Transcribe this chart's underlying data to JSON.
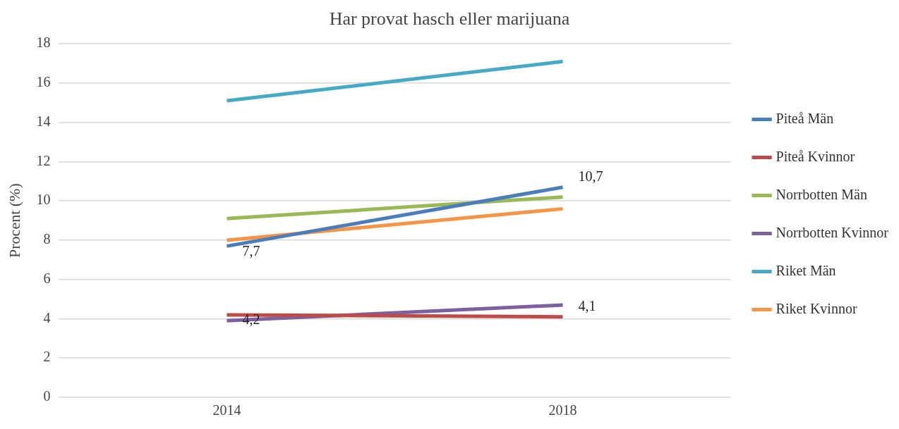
{
  "chart_data": {
    "type": "line",
    "title": "Har provat hasch eller marijuana",
    "ylabel": "Procent (%)",
    "categories": [
      "2014",
      "2018"
    ],
    "series": [
      {
        "name": "Piteå Män",
        "color": "#4a7ebb",
        "values": [
          7.7,
          10.7
        ],
        "value_labels": [
          "7,7",
          "10,7"
        ]
      },
      {
        "name": "Piteå Kvinnor",
        "color": "#be4b48",
        "values": [
          4.2,
          4.1
        ],
        "value_labels": [
          "4,2",
          "4,1"
        ]
      },
      {
        "name": "Norrbotten Män",
        "color": "#98b954",
        "values": [
          9.1,
          10.2
        ]
      },
      {
        "name": "Norrbotten Kvinnor",
        "color": "#7d60a0",
        "values": [
          3.9,
          4.7
        ]
      },
      {
        "name": "Riket Män",
        "color": "#46aac5",
        "values": [
          15.1,
          17.1
        ]
      },
      {
        "name": "Riket Kvinnor",
        "color": "#f69546",
        "values": [
          8.0,
          9.6
        ]
      }
    ],
    "ylim": [
      0,
      18
    ],
    "yticks": [
      0,
      2,
      4,
      6,
      8,
      10,
      12,
      14,
      16,
      18
    ],
    "grid": "y",
    "legend": "right",
    "marker": "none",
    "line_style": "solid"
  }
}
